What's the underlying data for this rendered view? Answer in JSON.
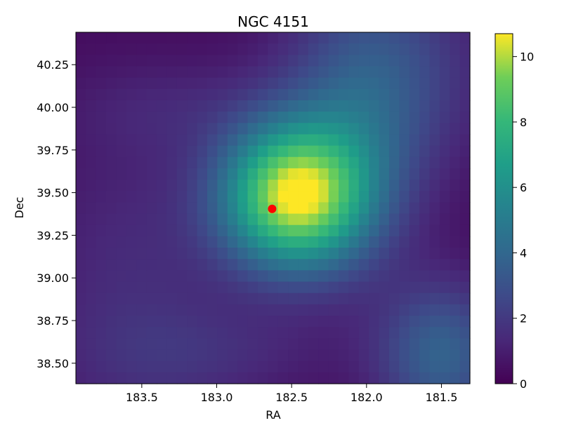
{
  "chart_data": {
    "type": "heatmap",
    "title": "NGC 4151",
    "xlabel": "RA",
    "ylabel": "Dec",
    "x_inverted": true,
    "xlim": [
      183.94,
      181.31
    ],
    "ylim": [
      38.38,
      40.44
    ],
    "x_ticks": [
      183.5,
      183.0,
      182.5,
      182.0,
      181.5
    ],
    "x_tick_labels": [
      "183.5",
      "183.0",
      "182.5",
      "182.0",
      "181.5"
    ],
    "y_ticks": [
      38.5,
      38.75,
      39.0,
      39.25,
      39.5,
      39.75,
      40.0,
      40.25
    ],
    "y_tick_labels": [
      "38.50",
      "38.75",
      "39.00",
      "39.25",
      "39.50",
      "39.75",
      "40.00",
      "40.25"
    ],
    "grid": false,
    "colormap": "viridis",
    "colorbar": {
      "range": [
        0,
        10.7
      ],
      "ticks": [
        0,
        2,
        4,
        6,
        8,
        10
      ],
      "tick_labels": [
        "0",
        "2",
        "4",
        "6",
        "8",
        "10"
      ]
    },
    "grid_cells": {
      "nx": 39,
      "ny": 31
    },
    "components": [
      {
        "ra": 182.48,
        "dec": 39.48,
        "sigma_ra": 0.34,
        "sigma_dec": 0.3,
        "amplitude": 10.0
      },
      {
        "ra": 181.9,
        "dec": 40.2,
        "sigma_ra": 0.45,
        "sigma_dec": 0.45,
        "amplitude": 2.6
      },
      {
        "ra": 182.05,
        "dec": 39.7,
        "sigma_ra": 0.3,
        "sigma_dec": 0.5,
        "amplitude": 1.4
      },
      {
        "ra": 181.5,
        "dec": 38.55,
        "sigma_ra": 0.3,
        "sigma_dec": 0.3,
        "amplitude": 3.4
      },
      {
        "ra": 183.55,
        "dec": 38.95,
        "sigma_ra": 0.5,
        "sigma_dec": 0.7,
        "amplitude": 1.2
      },
      {
        "ra": 183.3,
        "dec": 40.0,
        "sigma_ra": 0.5,
        "sigma_dec": 0.2,
        "amplitude": 0.7
      },
      {
        "ra": 183.0,
        "dec": 38.55,
        "sigma_ra": 0.6,
        "sigma_dec": 0.2,
        "amplitude": 0.9
      }
    ],
    "baseline": 0.3,
    "marker": {
      "ra": 182.63,
      "dec": 39.405,
      "color": "#ff0000"
    }
  }
}
